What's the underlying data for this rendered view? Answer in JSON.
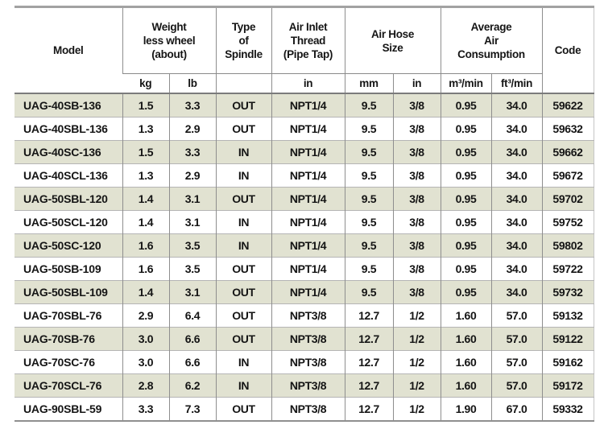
{
  "table": {
    "header": {
      "model": "Model",
      "weight": "Weight\nless wheel\n(about)",
      "spindle": "Type\nof\nSpindle",
      "air_inlet": "Air Inlet\nThread\n(Pipe Tap)",
      "air_hose": "Air Hose\nSize",
      "consumption": "Average\nAir\nConsumption",
      "code": "Code"
    },
    "subheader": {
      "kg": "kg",
      "lb": "lb",
      "spindle": "",
      "inlet_in": "in",
      "hose_mm": "mm",
      "hose_in": "in",
      "m3min": "m³/min",
      "ft3min": "ft³/min"
    },
    "columns": [
      "model",
      "kg",
      "lb",
      "spindle",
      "inlet",
      "hose_mm",
      "hose_in",
      "m3min",
      "ft3min",
      "code"
    ],
    "rows": [
      [
        "UAG-40SB-136",
        "1.5",
        "3.3",
        "OUT",
        "NPT1/4",
        "9.5",
        "3/8",
        "0.95",
        "34.0",
        "59622"
      ],
      [
        "UAG-40SBL-136",
        "1.3",
        "2.9",
        "OUT",
        "NPT1/4",
        "9.5",
        "3/8",
        "0.95",
        "34.0",
        "59632"
      ],
      [
        "UAG-40SC-136",
        "1.5",
        "3.3",
        "IN",
        "NPT1/4",
        "9.5",
        "3/8",
        "0.95",
        "34.0",
        "59662"
      ],
      [
        "UAG-40SCL-136",
        "1.3",
        "2.9",
        "IN",
        "NPT1/4",
        "9.5",
        "3/8",
        "0.95",
        "34.0",
        "59672"
      ],
      [
        "UAG-50SBL-120",
        "1.4",
        "3.1",
        "OUT",
        "NPT1/4",
        "9.5",
        "3/8",
        "0.95",
        "34.0",
        "59702"
      ],
      [
        "UAG-50SCL-120",
        "1.4",
        "3.1",
        "IN",
        "NPT1/4",
        "9.5",
        "3/8",
        "0.95",
        "34.0",
        "59752"
      ],
      [
        "UAG-50SC-120",
        "1.6",
        "3.5",
        "IN",
        "NPT1/4",
        "9.5",
        "3/8",
        "0.95",
        "34.0",
        "59802"
      ],
      [
        "UAG-50SB-109",
        "1.6",
        "3.5",
        "OUT",
        "NPT1/4",
        "9.5",
        "3/8",
        "0.95",
        "34.0",
        "59722"
      ],
      [
        "UAG-50SBL-109",
        "1.4",
        "3.1",
        "OUT",
        "NPT1/4",
        "9.5",
        "3/8",
        "0.95",
        "34.0",
        "59732"
      ],
      [
        "UAG-70SBL-76",
        "2.9",
        "6.4",
        "OUT",
        "NPT3/8",
        "12.7",
        "1/2",
        "1.60",
        "57.0",
        "59132"
      ],
      [
        "UAG-70SB-76",
        "3.0",
        "6.6",
        "OUT",
        "NPT3/8",
        "12.7",
        "1/2",
        "1.60",
        "57.0",
        "59122"
      ],
      [
        "UAG-70SC-76",
        "3.0",
        "6.6",
        "IN",
        "NPT3/8",
        "12.7",
        "1/2",
        "1.60",
        "57.0",
        "59162"
      ],
      [
        "UAG-70SCL-76",
        "2.8",
        "6.2",
        "IN",
        "NPT3/8",
        "12.7",
        "1/2",
        "1.60",
        "57.0",
        "59172"
      ],
      [
        "UAG-90SBL-59",
        "3.3",
        "7.3",
        "OUT",
        "NPT3/8",
        "12.7",
        "1/2",
        "1.90",
        "67.0",
        "59332"
      ]
    ],
    "colors": {
      "row_shade": "#e1e2d1",
      "grid_line": "#8e8e8e",
      "row_separator": "#b5b5b5",
      "text": "#151515"
    }
  }
}
